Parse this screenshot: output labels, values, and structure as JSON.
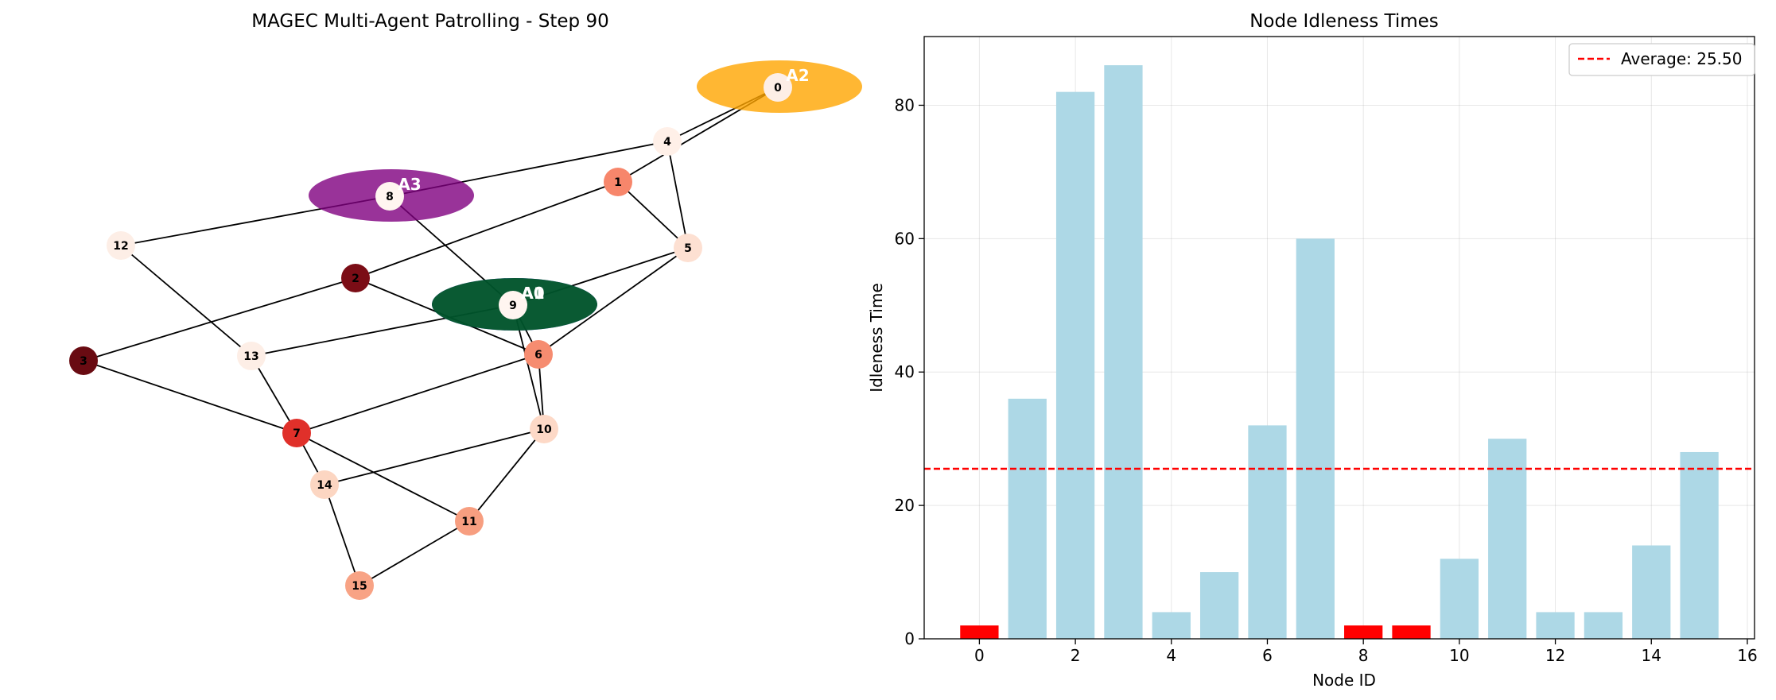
{
  "chart_data": [
    {
      "type": "network",
      "title": "MAGEC Multi-Agent Patrolling - Step 90",
      "nodes": [
        {
          "id": "0",
          "color": "#fdeee6"
        },
        {
          "id": "1",
          "color": "#f7866b"
        },
        {
          "id": "2",
          "color": "#7b0d16"
        },
        {
          "id": "3",
          "color": "#690b12"
        },
        {
          "id": "4",
          "color": "#fff0e8"
        },
        {
          "id": "5",
          "color": "#fde0d2"
        },
        {
          "id": "6",
          "color": "#f68c70"
        },
        {
          "id": "7",
          "color": "#e0302a"
        },
        {
          "id": "8",
          "color": "#fff5f0"
        },
        {
          "id": "9",
          "color": "#fff5f0"
        },
        {
          "id": "10",
          "color": "#fdd9c7"
        },
        {
          "id": "11",
          "color": "#f79e80"
        },
        {
          "id": "12",
          "color": "#fdeee6"
        },
        {
          "id": "13",
          "color": "#fdeee6"
        },
        {
          "id": "14",
          "color": "#fcd6c2"
        },
        {
          "id": "15",
          "color": "#f8a385"
        }
      ],
      "edges": [
        [
          "0",
          "4"
        ],
        [
          "0",
          "1"
        ],
        [
          "4",
          "8"
        ],
        [
          "4",
          "5"
        ],
        [
          "1",
          "5"
        ],
        [
          "1",
          "2"
        ],
        [
          "8",
          "12"
        ],
        [
          "8",
          "9"
        ],
        [
          "12",
          "13"
        ],
        [
          "2",
          "3"
        ],
        [
          "2",
          "6"
        ],
        [
          "5",
          "9"
        ],
        [
          "5",
          "6"
        ],
        [
          "9",
          "13"
        ],
        [
          "9",
          "6"
        ],
        [
          "9",
          "10"
        ],
        [
          "3",
          "7"
        ],
        [
          "13",
          "7"
        ],
        [
          "6",
          "7"
        ],
        [
          "6",
          "10"
        ],
        [
          "7",
          "14"
        ],
        [
          "7",
          "11"
        ],
        [
          "10",
          "14"
        ],
        [
          "10",
          "11"
        ],
        [
          "14",
          "15"
        ],
        [
          "11",
          "15"
        ]
      ],
      "agents": [
        {
          "label": "A2",
          "node": "0",
          "color": "#ffa500"
        },
        {
          "label": "A3",
          "node": "8",
          "color": "#800080"
        },
        {
          "label": "A0",
          "node": "9",
          "color": "#0000ff"
        },
        {
          "label": "A1",
          "node": "9",
          "color": "#006400"
        }
      ]
    },
    {
      "type": "bar",
      "title": "Node Idleness Times",
      "xlabel": "Node ID",
      "ylabel": "Idleness Time",
      "categories": [
        0,
        1,
        2,
        3,
        4,
        5,
        6,
        7,
        8,
        9,
        10,
        11,
        12,
        13,
        14,
        15
      ],
      "values": [
        2,
        36,
        82,
        86,
        4,
        10,
        32,
        60,
        2,
        2,
        12,
        30,
        4,
        4,
        14,
        28
      ],
      "bar_colors": [
        "#ff0000",
        "#add8e6",
        "#add8e6",
        "#add8e6",
        "#add8e6",
        "#add8e6",
        "#add8e6",
        "#add8e6",
        "#ff0000",
        "#ff0000",
        "#add8e6",
        "#add8e6",
        "#add8e6",
        "#add8e6",
        "#add8e6",
        "#add8e6"
      ],
      "average": {
        "value": 25.5,
        "label": "Average: 25.50",
        "color": "#ff0000",
        "style": "dashed"
      },
      "xlim": [
        -1.15,
        16.15
      ],
      "ylim": [
        0,
        90.3
      ],
      "xticks": [
        0,
        2,
        4,
        6,
        8,
        10,
        12,
        14,
        16
      ],
      "yticks": [
        0,
        20,
        40,
        60,
        80
      ],
      "grid": true,
      "legend": "top-right"
    }
  ]
}
